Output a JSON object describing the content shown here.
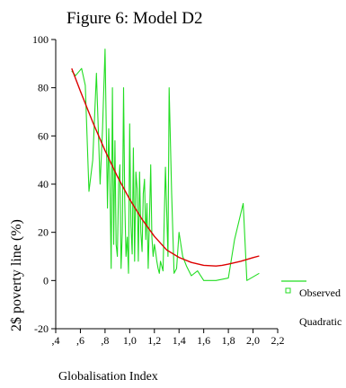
{
  "chart_data": {
    "type": "line",
    "title": "Figure 6: Model D2",
    "xlabel": "Globalisation Index",
    "ylabel": "2$ poverty line (%)",
    "xlim": [
      0.4,
      2.2
    ],
    "ylim": [
      -20,
      100
    ],
    "x_ticks": [
      0.4,
      0.6,
      0.8,
      1.0,
      1.2,
      1.4,
      1.6,
      1.8,
      2.0,
      2.2
    ],
    "x_tick_labels": [
      ",4",
      ",6",
      ",8",
      "1,0",
      "1,2",
      "1,4",
      "1,6",
      "1,8",
      "2,0",
      "2,2"
    ],
    "y_ticks": [
      -20,
      0,
      20,
      40,
      60,
      80,
      100
    ],
    "y_tick_labels": [
      "-20",
      "0",
      "20",
      "40",
      "60",
      "80",
      "100"
    ],
    "grid": false,
    "legend_position": "right",
    "legend_items": [
      {
        "label": "Observed",
        "color": "#22dd22"
      },
      {
        "label": "Quadratic",
        "color": "#dd0000"
      }
    ],
    "series": [
      {
        "name": "Observed",
        "color": "#22dd22",
        "x": [
          0.53,
          0.56,
          0.61,
          0.64,
          0.67,
          0.7,
          0.73,
          0.76,
          0.78,
          0.8,
          0.82,
          0.83,
          0.84,
          0.85,
          0.86,
          0.87,
          0.88,
          0.89,
          0.9,
          0.91,
          0.92,
          0.93,
          0.94,
          0.95,
          0.96,
          0.97,
          0.98,
          0.99,
          1.0,
          1.01,
          1.02,
          1.03,
          1.04,
          1.05,
          1.06,
          1.07,
          1.08,
          1.09,
          1.1,
          1.11,
          1.12,
          1.13,
          1.14,
          1.15,
          1.16,
          1.17,
          1.18,
          1.19,
          1.2,
          1.21,
          1.22,
          1.23,
          1.24,
          1.25,
          1.27,
          1.29,
          1.31,
          1.32,
          1.34,
          1.36,
          1.38,
          1.4,
          1.43,
          1.46,
          1.5,
          1.55,
          1.6,
          1.7,
          1.8,
          1.85,
          1.92,
          1.95,
          2.05
        ],
        "y": [
          87,
          85,
          88,
          81,
          37,
          50,
          86,
          40,
          63,
          96,
          30,
          63,
          38,
          5,
          80,
          15,
          58,
          15,
          10,
          40,
          48,
          5,
          20,
          80,
          33,
          10,
          18,
          3,
          65,
          23,
          11,
          55,
          8,
          45,
          38,
          8,
          45,
          20,
          12,
          36,
          42,
          17,
          32,
          5,
          25,
          48,
          18,
          10,
          15,
          12,
          8,
          5,
          3,
          8,
          4,
          47,
          10,
          80,
          36,
          3,
          5,
          20,
          10,
          6,
          2,
          4,
          0,
          0,
          1,
          17,
          32,
          0,
          3
        ]
      },
      {
        "name": "Quadratic",
        "color": "#dd0000",
        "x": [
          0.53,
          0.6,
          0.7,
          0.8,
          0.9,
          1.0,
          1.1,
          1.2,
          1.3,
          1.4,
          1.5,
          1.6,
          1.7,
          1.75,
          1.8,
          1.9,
          2.0,
          2.05
        ],
        "y": [
          88.0,
          78.6,
          65.7,
          53.9,
          43.2,
          33.7,
          25.4,
          18.3,
          12.7,
          9.6,
          7.5,
          6.3,
          6.0,
          6.3,
          6.8,
          8.0,
          9.5,
          10.2
        ]
      }
    ]
  }
}
